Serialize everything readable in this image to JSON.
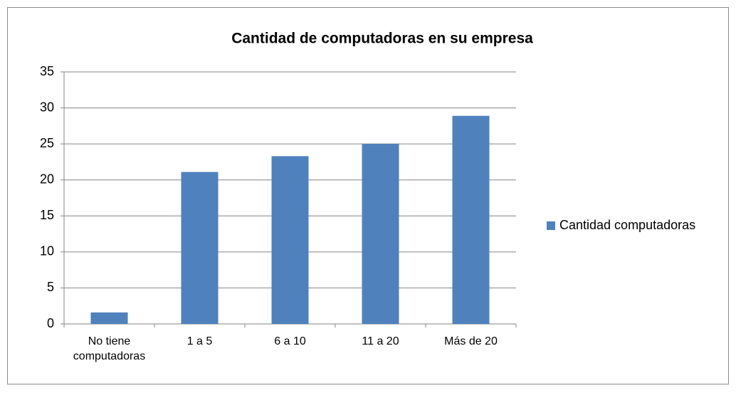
{
  "chart_data": {
    "type": "bar",
    "title": "Cantidad de computadoras en su empresa",
    "categories": [
      "No tiene computadoras",
      "1 a 5",
      "6 a 10",
      "11 a 20",
      "Más de 20"
    ],
    "series": [
      {
        "name": "Cantidad computadoras",
        "color": "#4f81bd",
        "values": [
          1.6,
          21.1,
          23.3,
          25.0,
          28.9
        ]
      }
    ],
    "ylim": [
      0,
      35
    ],
    "yticks": [
      0,
      5,
      10,
      15,
      20,
      25,
      30,
      35
    ],
    "grid": true,
    "legend": "right"
  }
}
